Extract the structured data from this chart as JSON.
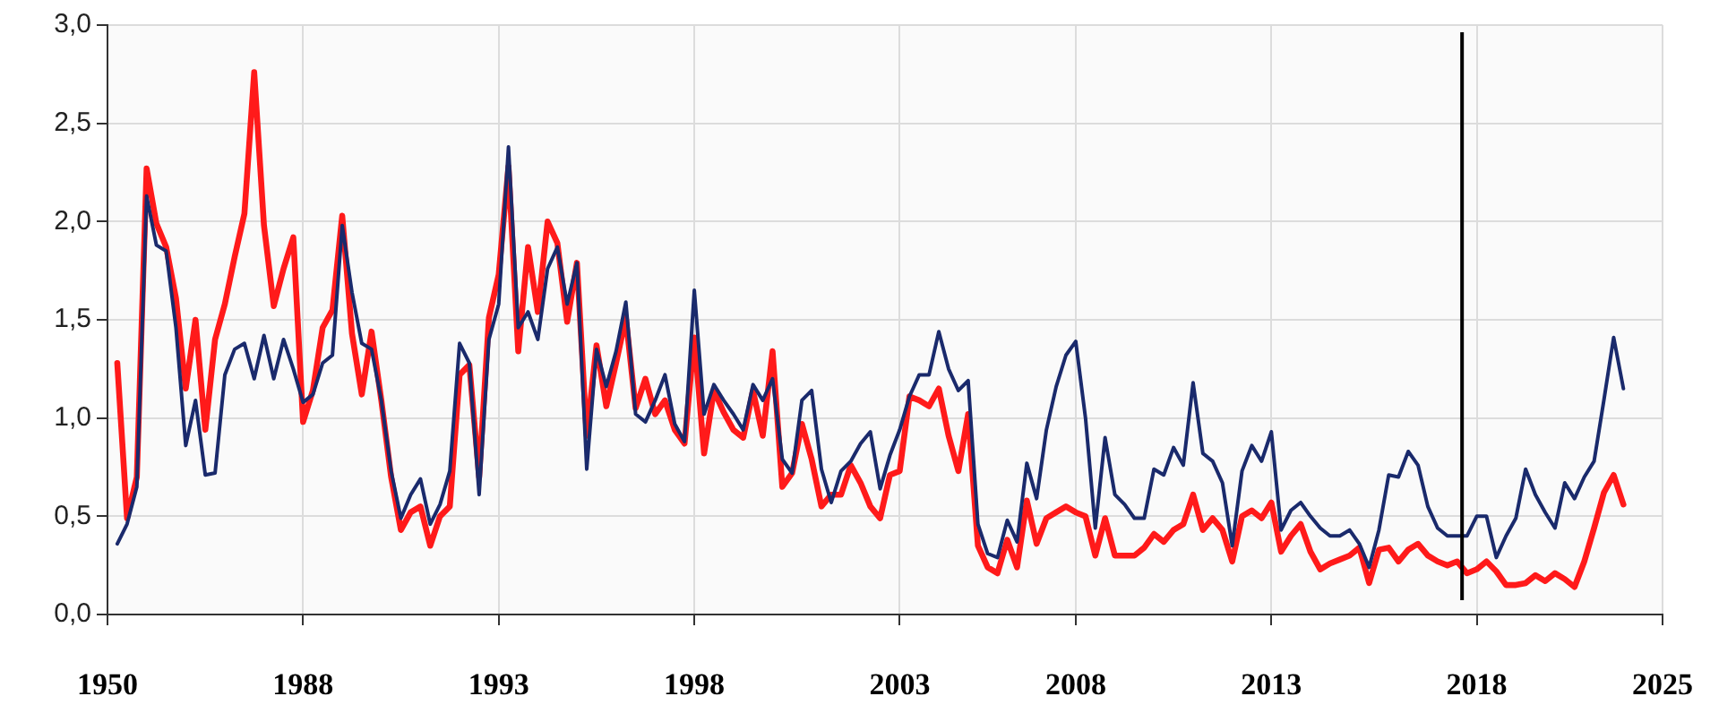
{
  "chart_data": {
    "type": "line",
    "categories": [
      "1950",
      null,
      null,
      null,
      null,
      null,
      null,
      null,
      null,
      null,
      null,
      null,
      null,
      null,
      null,
      null,
      null,
      null,
      null,
      null,
      "1988",
      null,
      null,
      null,
      null,
      null,
      null,
      null,
      null,
      null,
      null,
      null,
      null,
      null,
      null,
      null,
      null,
      null,
      null,
      null,
      "1993",
      null,
      null,
      null,
      null,
      null,
      null,
      null,
      null,
      null,
      null,
      null,
      null,
      null,
      null,
      null,
      null,
      null,
      null,
      null,
      "1998",
      null,
      null,
      null,
      null,
      null,
      null,
      null,
      null,
      null,
      null,
      null,
      null,
      null,
      null,
      null,
      null,
      null,
      null,
      null,
      null,
      "2003",
      null,
      null,
      null,
      null,
      null,
      null,
      null,
      null,
      null,
      null,
      null,
      null,
      null,
      null,
      null,
      null,
      null,
      "2008",
      null,
      null,
      null,
      null,
      null,
      null,
      null,
      null,
      null,
      null,
      null,
      null,
      null,
      null,
      null,
      null,
      null,
      null,
      null,
      "2013",
      null,
      null,
      null,
      null,
      null,
      null,
      null,
      null,
      null,
      null,
      null,
      null,
      null,
      null,
      null,
      null,
      null,
      null,
      null,
      null,
      "2018",
      null,
      null,
      null,
      null,
      null,
      null,
      null,
      null,
      null,
      null,
      null,
      null,
      null,
      null,
      null,
      null,
      null,
      null,
      "2025"
    ],
    "series": [
      {
        "color": "#1a2a6c",
        "values": [
          null,
          0.36,
          0.46,
          0.65,
          2.13,
          1.88,
          1.85,
          1.46,
          0.86,
          1.09,
          0.71,
          0.72,
          1.22,
          1.35,
          1.38,
          1.2,
          1.42,
          1.2,
          1.4,
          1.25,
          1.08,
          1.12,
          1.28,
          1.32,
          1.98,
          1.64,
          1.38,
          1.35,
          1.09,
          0.73,
          0.49,
          0.61,
          0.69,
          0.46,
          0.56,
          0.73,
          1.38,
          1.28,
          0.61,
          1.4,
          1.58,
          2.38,
          1.46,
          1.54,
          1.4,
          1.76,
          1.87,
          1.58,
          1.79,
          0.74,
          1.35,
          1.16,
          1.34,
          1.59,
          1.02,
          0.98,
          1.09,
          1.22,
          0.97,
          0.88,
          1.65,
          1.02,
          1.17,
          1.09,
          1.02,
          0.94,
          1.17,
          1.09,
          1.2,
          0.79,
          0.72,
          1.09,
          1.14,
          0.74,
          0.57,
          0.73,
          0.78,
          0.87,
          0.93,
          0.64,
          0.81,
          0.94,
          1.11,
          1.22,
          1.22,
          1.44,
          1.25,
          1.14,
          1.19,
          0.46,
          0.31,
          0.29,
          0.48,
          0.37,
          0.77,
          0.59,
          0.94,
          1.16,
          1.32,
          1.39,
          1.0,
          0.44,
          0.9,
          0.61,
          0.56,
          0.49,
          0.49,
          0.74,
          0.71,
          0.85,
          0.76,
          1.18,
          0.82,
          0.78,
          0.67,
          0.35,
          0.73,
          0.86,
          0.78,
          0.93,
          0.43,
          0.53,
          0.57,
          0.5,
          0.44,
          0.4,
          0.4,
          0.43,
          0.36,
          0.24,
          0.43,
          0.71,
          0.7,
          0.83,
          0.76,
          0.55,
          0.44,
          0.4,
          0.4,
          0.4,
          0.5,
          0.5,
          0.29,
          0.4,
          0.49,
          0.74,
          0.61,
          0.52,
          0.44,
          0.67,
          0.59,
          0.7,
          0.78,
          1.09,
          1.41,
          1.15,
          null,
          null,
          null,
          null
        ]
      },
      {
        "color": "#ff1a1a",
        "values": [
          null,
          1.28,
          0.49,
          0.7,
          2.27,
          1.99,
          1.87,
          1.61,
          1.15,
          1.5,
          0.94,
          1.4,
          1.58,
          1.82,
          2.04,
          2.76,
          1.98,
          1.57,
          1.76,
          1.92,
          0.98,
          1.14,
          1.46,
          1.55,
          2.03,
          1.43,
          1.12,
          1.44,
          1.09,
          0.7,
          0.43,
          0.52,
          0.55,
          0.35,
          0.5,
          0.55,
          1.22,
          1.27,
          0.7,
          1.51,
          1.73,
          2.28,
          1.34,
          1.87,
          1.54,
          2.0,
          1.89,
          1.49,
          1.79,
          0.91,
          1.37,
          1.06,
          1.28,
          1.51,
          1.05,
          1.2,
          1.02,
          1.09,
          0.94,
          0.87,
          1.41,
          0.82,
          1.14,
          1.03,
          0.94,
          0.9,
          1.14,
          0.91,
          1.34,
          0.65,
          0.72,
          0.97,
          0.79,
          0.55,
          0.61,
          0.61,
          0.76,
          0.67,
          0.55,
          0.49,
          0.71,
          0.73,
          1.11,
          1.09,
          1.06,
          1.15,
          0.91,
          0.73,
          1.02,
          0.35,
          0.24,
          0.21,
          0.38,
          0.24,
          0.58,
          0.36,
          0.49,
          0.52,
          0.55,
          0.52,
          0.5,
          0.3,
          0.49,
          0.3,
          0.3,
          0.3,
          0.34,
          0.41,
          0.37,
          0.43,
          0.46,
          0.61,
          0.43,
          0.49,
          0.43,
          0.27,
          0.5,
          0.53,
          0.49,
          0.57,
          0.32,
          0.4,
          0.46,
          0.32,
          0.23,
          0.26,
          0.28,
          0.3,
          0.34,
          0.16,
          0.33,
          0.34,
          0.27,
          0.33,
          0.36,
          0.3,
          0.27,
          0.25,
          0.27,
          0.21,
          0.23,
          0.27,
          0.22,
          0.15,
          0.15,
          0.16,
          0.2,
          0.17,
          0.21,
          0.18,
          0.14,
          0.27,
          0.44,
          0.62,
          0.71,
          0.56,
          null,
          null,
          null,
          null
        ]
      }
    ],
    "ylim": [
      0,
      3
    ],
    "yticks": [
      {
        "value": 0,
        "label": "0,0"
      },
      {
        "value": 0.5,
        "label": "0,5"
      },
      {
        "value": 1,
        "label": "1,0"
      },
      {
        "value": 1.5,
        "label": "1,5"
      },
      {
        "value": 2,
        "label": "2,0"
      },
      {
        "value": 2.5,
        "label": "2,5"
      },
      {
        "value": 3,
        "label": "3,0"
      }
    ],
    "grid": true,
    "legend": false,
    "marker": "none",
    "line_style": "solid"
  }
}
